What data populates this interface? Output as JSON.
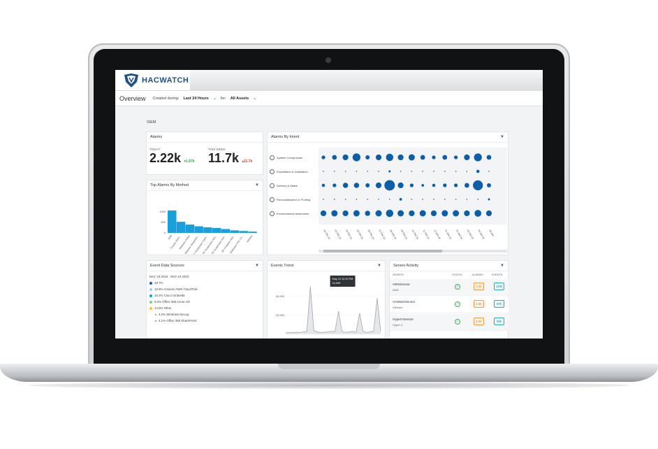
{
  "app": {
    "logo_text": "HACWATCH"
  },
  "toolbar": {
    "page_title": "Overview",
    "created_label": "Created during:",
    "created_value": "Last 24 Hours",
    "for_label": "for:",
    "for_value": "All Assets"
  },
  "section_title": "SIEM",
  "alarms": {
    "title": "Alarms",
    "today_label": "TODAY",
    "today_value": "2.22k",
    "today_delta": "1.87k",
    "week_label": "THIS WEEK",
    "week_value": "11.7k",
    "week_delta": "11.7k"
  },
  "top_alarms": {
    "title": "Top Alarms By Method",
    "chart_data": {
      "type": "bar",
      "categories": [
        "SPN",
        "Cluster Admi...",
        "Malware Policy",
        "Malware Beaconin...",
        "IIS Suspicious Conn...",
        "IIS Suspicious Acti...",
        "IIS Suspicious Acti...",
        "BF Protocol Obs...",
        "Malicious SSL Ce...",
        "Adware"
      ],
      "values": [
        1050,
        520,
        390,
        310,
        260,
        230,
        180,
        120,
        90,
        60
      ],
      "yticks": [
        "1000",
        "500",
        "0"
      ],
      "ylim": [
        0,
        1100
      ],
      "color": "#1aa0d8"
    }
  },
  "intent": {
    "title": "Alarms By Intent",
    "rows": [
      "System Compromise",
      "Exploitation & Installation",
      "Delivery & Attack",
      "Reconnaissance & Probing",
      "Environmental Awareness"
    ],
    "dates": [
      "02 PM 23",
      "03 PM 23",
      "04 PM 23",
      "05 PM 23",
      "06 PM 23",
      "07 PM 23",
      "08 PM 23",
      "09 PM 23",
      "10 PM 23",
      "11 PM 23",
      "12 AM 24",
      "01 AM 24",
      "02 AM 24",
      "03 AM 24",
      "04 AM 24",
      "05 AM"
    ],
    "chart_data": {
      "type": "scatter",
      "note_scale": "bubble radius relative 0-1",
      "matrix": [
        [
          0.35,
          0.45,
          0.55,
          0.75,
          0.4,
          0.55,
          0.7,
          0.55,
          0.6,
          0.45,
          0.35,
          0.45,
          0.35,
          0.55,
          0.75,
          0.45
        ],
        [
          0.1,
          0.1,
          0.1,
          0.1,
          0.1,
          0.1,
          0.2,
          0.1,
          0.1,
          0.1,
          0.1,
          0.1,
          0.1,
          0.1,
          0.3,
          0.1
        ],
        [
          0.3,
          0.35,
          0.5,
          0.5,
          0.4,
          0.55,
          1.0,
          0.55,
          0.35,
          0.25,
          0.3,
          0.35,
          0.35,
          0.45,
          0.95,
          0.4
        ],
        [
          0.1,
          0.1,
          0.1,
          0.1,
          0.1,
          0.1,
          0.1,
          0.25,
          0.1,
          0.1,
          0.1,
          0.1,
          0.1,
          0.1,
          0.1,
          0.2
        ],
        [
          0.55,
          0.6,
          0.55,
          0.6,
          0.5,
          0.6,
          0.7,
          0.6,
          0.55,
          0.6,
          0.55,
          0.6,
          0.6,
          0.55,
          0.65,
          0.55
        ]
      ],
      "color": "#0b5ea8"
    }
  },
  "sources": {
    "title": "Event Data Sources",
    "range": "MAY 23 2019 - MAY 24 2019",
    "items": [
      {
        "label": "48.7%",
        "color": "#1e5aa8"
      },
      {
        "label": "15.8% Amazon AWS CloudTrail",
        "color": "#8fd3f4"
      },
      {
        "label": "15.2% Cisco Umbrella",
        "color": "#1aa0d8"
      },
      {
        "label": "9.3% Office 365 Azure AD",
        "color": "#7ec88a"
      },
      {
        "label": "14.6% Other",
        "color": "#f2c233"
      },
      {
        "label": "4.2% Windows NxLog",
        "color": "#888888"
      },
      {
        "label": "4.1% Office 365 SharePoint",
        "color": "#888888"
      }
    ]
  },
  "trend": {
    "title": "Events Trend",
    "tooltip_date": "May 24 12:00 PM",
    "tooltip_value": "24,099",
    "chart_data": {
      "type": "line",
      "yticks": [
        "40,000",
        "20,000"
      ],
      "ylim": [
        0,
        55000
      ],
      "values": [
        1500,
        2000,
        1800,
        2200,
        2000,
        2500,
        3000,
        50000,
        4000,
        2500,
        2000,
        2200,
        2500,
        3000,
        2800,
        24099,
        3000,
        2000,
        2500,
        3000,
        2000,
        22000,
        3000,
        2000,
        2500,
        3000,
        38000,
        3000
      ]
    }
  },
  "sensors": {
    "title": "Sensor Activity",
    "headers": {
      "sensor": "SENSOR",
      "status": "STATUS",
      "alarms": "ALARMS",
      "events": "EVENTS"
    },
    "rows": [
      {
        "name": "AWSSensor",
        "type": "AWS",
        "alarms": "2.2k",
        "events": "120k"
      },
      {
        "name": "VmWareSensor",
        "type": "VMware",
        "alarms": "1.5k",
        "events": "67k"
      },
      {
        "name": "HyperVSensor",
        "type": "Hyper-V",
        "alarms": "1.2k",
        "events": "60k"
      }
    ]
  },
  "colors": {
    "accent": "#1e4f86",
    "bar": "#1aa0d8",
    "bubble": "#0b5ea8"
  }
}
